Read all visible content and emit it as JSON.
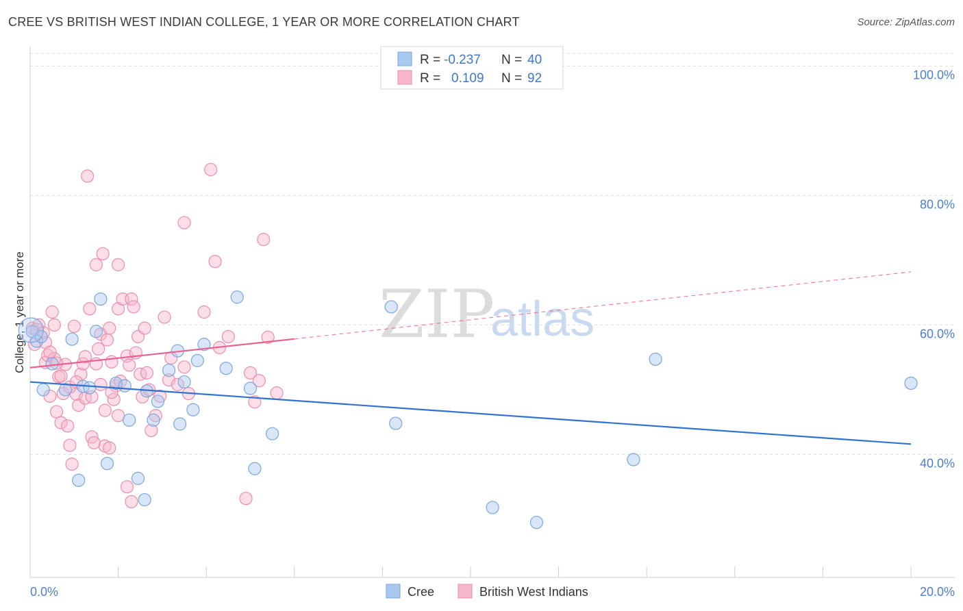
{
  "header": {
    "title": "CREE VS BRITISH WEST INDIAN COLLEGE, 1 YEAR OR MORE CORRELATION CHART",
    "source": "Source: ZipAtlas.com"
  },
  "legend": {
    "rows": [
      {
        "r_label": "R =",
        "r_value": "-0.237",
        "n_label": "N =",
        "n_value": "40"
      },
      {
        "r_label": "R =",
        "r_value": "0.109",
        "n_label": "N =",
        "n_value": "92"
      }
    ]
  },
  "bottom_legend": [
    "Cree",
    "British West Indians"
  ],
  "watermark": {
    "zip": "ZIP",
    "atlas": "atlas"
  },
  "colors": {
    "cree_fill": "#a9c8f0",
    "cree_stroke": "#7aa6de",
    "cree_line": "#2f72d0",
    "bwi_fill": "#f6b6c9",
    "bwi_stroke": "#ec8eab",
    "bwi_line": "#e8628f",
    "grid": "#dddddd",
    "axis_text": "#4a7fd0"
  },
  "chart_data": {
    "type": "scatter",
    "title": "CREE VS BRITISH WEST INDIAN COLLEGE, 1 YEAR OR MORE CORRELATION CHART",
    "xlabel": "",
    "ylabel": "College, 1 year or more",
    "xlim": [
      0,
      20
    ],
    "ylim": [
      21,
      103
    ],
    "x_tick_labels": [
      "0.0%",
      "20.0%"
    ],
    "y_ticks": [
      40,
      60,
      80,
      100
    ],
    "y_tick_labels": [
      "40.0%",
      "60.0%",
      "80.0%",
      "100.0%"
    ],
    "series": [
      {
        "name": "Cree",
        "r": -0.237,
        "n": 40,
        "trend": {
          "x": [
            0,
            20
          ],
          "y": [
            51.2,
            41.6
          ],
          "dashed_from": null
        },
        "points": [
          [
            0.05,
            59.0
          ],
          [
            0.15,
            57.5
          ],
          [
            0.25,
            58.2
          ],
          [
            0.5,
            54.0
          ],
          [
            0.8,
            50.0
          ],
          [
            0.95,
            57.8
          ],
          [
            1.1,
            36.0
          ],
          [
            1.2,
            50.5
          ],
          [
            1.35,
            50.3
          ],
          [
            1.5,
            59.0
          ],
          [
            1.6,
            64.0
          ],
          [
            1.75,
            38.6
          ],
          [
            1.95,
            51.0
          ],
          [
            2.15,
            50.6
          ],
          [
            2.25,
            45.3
          ],
          [
            2.45,
            36.3
          ],
          [
            2.6,
            33.0
          ],
          [
            2.65,
            49.8
          ],
          [
            2.8,
            45.3
          ],
          [
            2.9,
            48.2
          ],
          [
            3.15,
            53.0
          ],
          [
            3.35,
            56.0
          ],
          [
            3.4,
            44.7
          ],
          [
            3.5,
            51.2
          ],
          [
            3.7,
            46.9
          ],
          [
            3.8,
            54.5
          ],
          [
            3.95,
            57.0
          ],
          [
            4.45,
            53.3
          ],
          [
            4.7,
            64.3
          ],
          [
            5.0,
            50.2
          ],
          [
            5.1,
            37.8
          ],
          [
            5.5,
            43.2
          ],
          [
            8.2,
            62.8
          ],
          [
            8.3,
            44.8
          ],
          [
            10.5,
            31.8
          ],
          [
            11.5,
            29.5
          ],
          [
            13.7,
            39.2
          ],
          [
            14.2,
            54.7
          ],
          [
            20.0,
            51.0
          ],
          [
            0.3,
            50.0
          ]
        ]
      },
      {
        "name": "British West Indians",
        "r": 0.109,
        "n": 92,
        "trend": {
          "x": [
            0,
            20
          ],
          "y": [
            53.4,
            68.2
          ],
          "dashed_from": 6.0
        },
        "points": [
          [
            0.05,
            59.5
          ],
          [
            0.1,
            57.0
          ],
          [
            0.15,
            59.3
          ],
          [
            0.2,
            60.0
          ],
          [
            0.3,
            58.8
          ],
          [
            0.35,
            54.2
          ],
          [
            0.4,
            55.3
          ],
          [
            0.45,
            49.0
          ],
          [
            0.5,
            62.0
          ],
          [
            0.55,
            60.0
          ],
          [
            0.6,
            46.6
          ],
          [
            0.65,
            52.0
          ],
          [
            0.7,
            44.9
          ],
          [
            0.75,
            49.4
          ],
          [
            0.8,
            53.9
          ],
          [
            0.85,
            44.4
          ],
          [
            0.9,
            41.4
          ],
          [
            0.95,
            38.5
          ],
          [
            0.55,
            54.8
          ],
          [
            0.6,
            54.1
          ],
          [
            1.0,
            59.8
          ],
          [
            1.05,
            49.3
          ],
          [
            1.1,
            47.6
          ],
          [
            1.15,
            52.4
          ],
          [
            1.2,
            54.0
          ],
          [
            1.25,
            48.7
          ],
          [
            1.3,
            83.0
          ],
          [
            1.35,
            62.5
          ],
          [
            1.4,
            42.7
          ],
          [
            1.45,
            41.8
          ],
          [
            1.5,
            54.0
          ],
          [
            1.55,
            56.3
          ],
          [
            1.6,
            58.6
          ],
          [
            1.65,
            71.0
          ],
          [
            1.7,
            41.3
          ],
          [
            1.75,
            57.7
          ],
          [
            1.5,
            69.3
          ],
          [
            1.8,
            59.5
          ],
          [
            1.8,
            41.0
          ],
          [
            1.85,
            54.3
          ],
          [
            1.9,
            48.5
          ],
          [
            1.95,
            50.6
          ],
          [
            2.0,
            62.5
          ],
          [
            2.05,
            51.3
          ],
          [
            2.1,
            64.0
          ],
          [
            2.2,
            55.2
          ],
          [
            2.25,
            53.8
          ],
          [
            2.3,
            64.0
          ],
          [
            2.35,
            62.8
          ],
          [
            2.0,
            69.3
          ],
          [
            2.45,
            58.2
          ],
          [
            2.5,
            52.4
          ],
          [
            2.55,
            48.9
          ],
          [
            2.6,
            59.5
          ],
          [
            2.65,
            52.6
          ],
          [
            2.2,
            35.0
          ],
          [
            2.3,
            32.7
          ],
          [
            2.75,
            43.7
          ],
          [
            2.85,
            46.0
          ],
          [
            2.95,
            49.0
          ],
          [
            3.05,
            61.2
          ],
          [
            3.15,
            51.5
          ],
          [
            3.35,
            50.8
          ],
          [
            3.5,
            53.5
          ],
          [
            3.5,
            75.8
          ],
          [
            3.95,
            62.0
          ],
          [
            4.1,
            84.0
          ],
          [
            4.2,
            69.8
          ],
          [
            4.5,
            58.2
          ],
          [
            4.9,
            33.2
          ],
          [
            5.0,
            52.6
          ],
          [
            5.2,
            51.4
          ],
          [
            5.3,
            73.2
          ],
          [
            5.4,
            58.1
          ],
          [
            5.6,
            49.5
          ],
          [
            0.35,
            57.3
          ],
          [
            0.45,
            55.8
          ],
          [
            0.7,
            52.1
          ],
          [
            0.9,
            50.4
          ],
          [
            1.05,
            51.2
          ],
          [
            1.25,
            55.1
          ],
          [
            1.4,
            48.9
          ],
          [
            1.6,
            50.8
          ],
          [
            1.7,
            46.8
          ],
          [
            1.85,
            49.6
          ],
          [
            2.0,
            46.0
          ],
          [
            2.4,
            55.7
          ],
          [
            2.7,
            50.0
          ],
          [
            3.2,
            54.9
          ],
          [
            3.6,
            49.4
          ],
          [
            4.3,
            56.5
          ],
          [
            5.1,
            48.1
          ]
        ]
      }
    ]
  }
}
